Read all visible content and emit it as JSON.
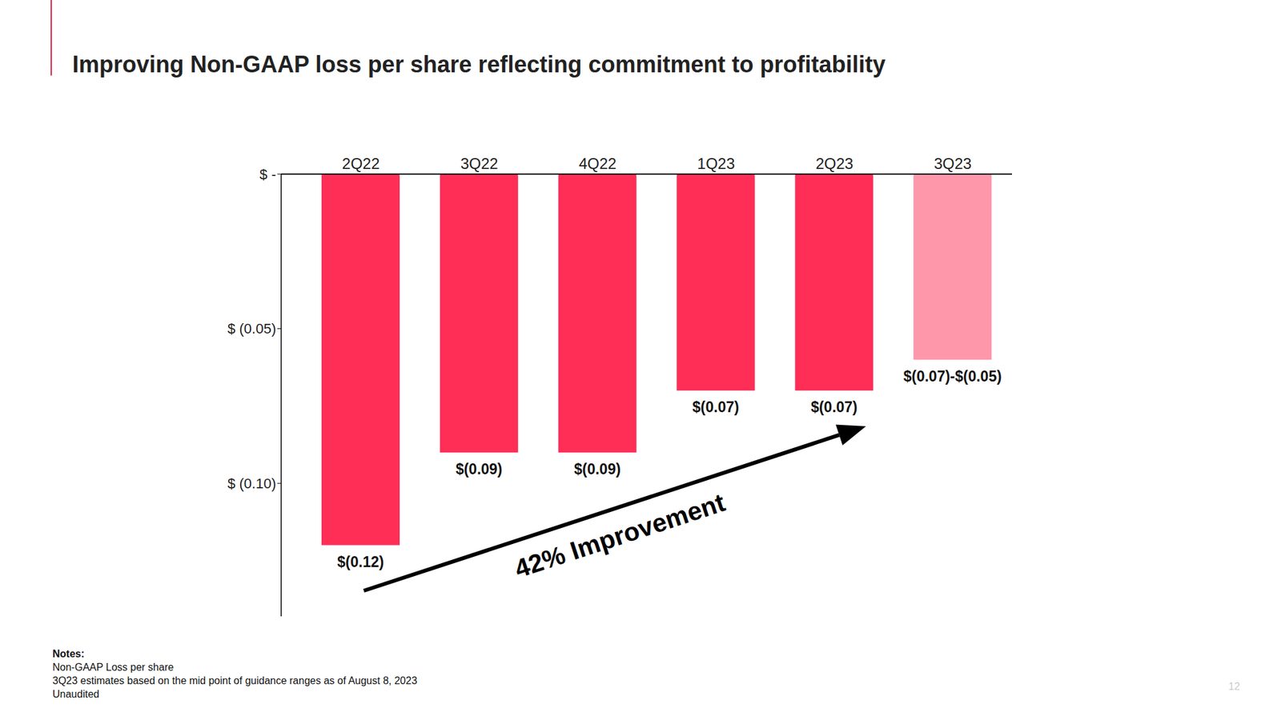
{
  "chart_data": {
    "type": "bar",
    "title": "Improving Non-GAAP loss per share reflecting commitment to profitability",
    "categories": [
      "2Q22",
      "3Q22",
      "4Q22",
      "1Q23",
      "2Q23",
      "3Q23"
    ],
    "values": [
      -0.12,
      -0.09,
      -0.09,
      -0.07,
      -0.07,
      -0.06
    ],
    "value_labels": [
      "$(0.12)",
      "$(0.09)",
      "$(0.09)",
      "$(0.07)",
      "$(0.07)",
      "$(0.07)-$(0.05)"
    ],
    "colors": [
      "#ff2e57",
      "#ff2e57",
      "#ff2e57",
      "#ff2e57",
      "#ff2e57",
      "#ff97ab"
    ],
    "ylim": [
      -0.143,
      0
    ],
    "yticks": [
      {
        "value": 0,
        "label": "$ -"
      },
      {
        "value": -0.05,
        "label": "$ (0.05)"
      },
      {
        "value": -0.1,
        "label": "$ (0.10)"
      }
    ],
    "grid": false,
    "data_labels": true,
    "annotations": [
      "42% Improvement"
    ],
    "notes_title": "Notes:",
    "notes": [
      "Non-GAAP Loss per share",
      "3Q23 estimates based on the mid point of guidance ranges as of August 8, 2023",
      "Unaudited"
    ],
    "page_number": "12"
  }
}
